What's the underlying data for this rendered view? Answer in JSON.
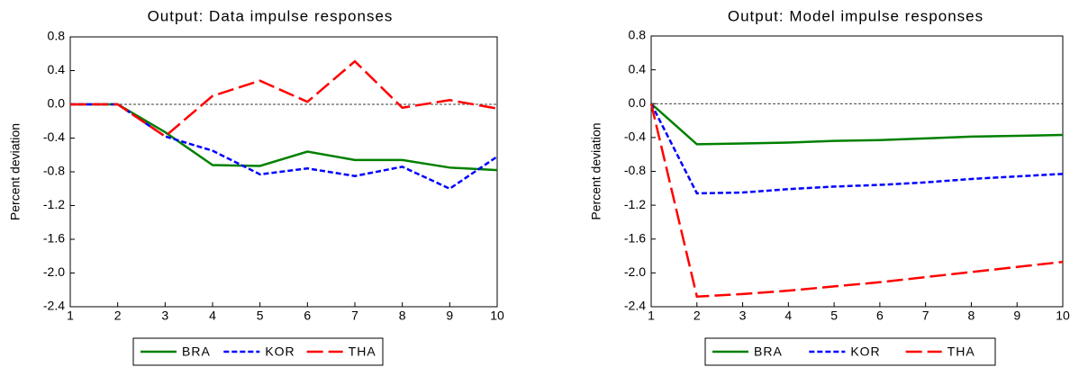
{
  "chart_data": [
    {
      "type": "line",
      "title": "Output: Data impulse responses",
      "y_label": "Percent deviation",
      "x": [
        1,
        2,
        3,
        4,
        5,
        6,
        7,
        8,
        9,
        10
      ],
      "xlim": [
        1,
        10
      ],
      "xticks": [
        1,
        2,
        3,
        4,
        5,
        6,
        7,
        8,
        9,
        10
      ],
      "ylim": [
        -2.4,
        0.8
      ],
      "yticks": [
        -2.4,
        {
          "value": -2,
          "label": "-2.0"
        },
        -1.6,
        -1.2,
        -0.8,
        -0.4,
        {
          "value": 0,
          "label": "0.0"
        },
        0.4,
        0.8
      ],
      "hline": 0,
      "series": [
        {
          "name": "BRA",
          "color": "#008000",
          "dash": "solid",
          "values": [
            0,
            0,
            -0.33,
            -0.72,
            -0.73,
            -0.56,
            -0.66,
            -0.66,
            -0.75,
            -0.78
          ]
        },
        {
          "name": "KOR",
          "color": "#0000ff",
          "dash": "short",
          "values": [
            0,
            0,
            -0.38,
            -0.55,
            -0.83,
            -0.76,
            -0.85,
            -0.74,
            -1.0,
            -0.62
          ]
        },
        {
          "name": "THA",
          "color": "#ff0000",
          "dash": "long",
          "values": [
            0,
            0,
            -0.38,
            0.1,
            0.28,
            0.03,
            0.51,
            -0.04,
            0.05,
            -0.05
          ]
        }
      ]
    },
    {
      "type": "line",
      "title": "Output: Model impulse responses",
      "y_label": "Percent deviation",
      "x": [
        1,
        2,
        3,
        4,
        5,
        6,
        7,
        8,
        9,
        10
      ],
      "xlim": [
        1,
        10
      ],
      "xticks": [
        1,
        2,
        3,
        4,
        5,
        6,
        7,
        8,
        9,
        10
      ],
      "ylim": [
        -2.4,
        0.8
      ],
      "yticks": [
        -2.4,
        {
          "value": -2,
          "label": "-2.0"
        },
        -1.6,
        -1.2,
        -0.8,
        -0.4,
        {
          "value": 0,
          "label": "0.0"
        },
        0.4,
        0.8
      ],
      "hline": 0,
      "series": [
        {
          "name": "BRA",
          "color": "#008000",
          "dash": "solid",
          "values": [
            0,
            -0.48,
            -0.47,
            -0.46,
            -0.44,
            -0.43,
            -0.41,
            -0.39,
            -0.38,
            -0.37
          ]
        },
        {
          "name": "KOR",
          "color": "#0000ff",
          "dash": "short",
          "values": [
            0,
            -1.06,
            -1.05,
            -1.01,
            -0.98,
            -0.96,
            -0.93,
            -0.89,
            -0.86,
            -0.83
          ]
        },
        {
          "name": "THA",
          "color": "#ff0000",
          "dash": "long",
          "values": [
            0,
            -2.28,
            -2.25,
            -2.21,
            -2.16,
            -2.11,
            -2.05,
            -1.99,
            -1.93,
            -1.87
          ]
        }
      ]
    }
  ]
}
